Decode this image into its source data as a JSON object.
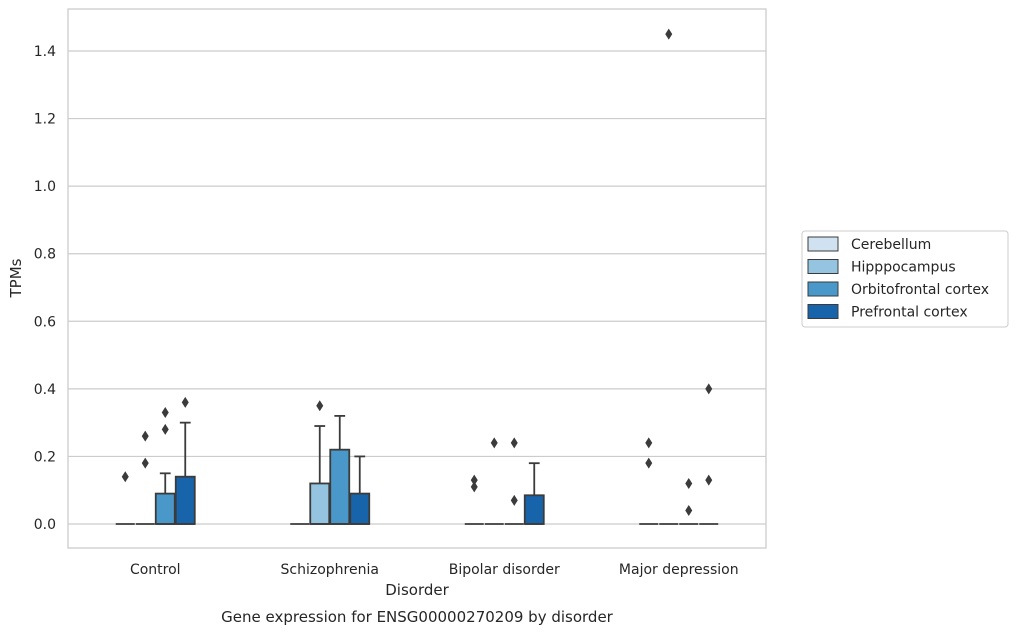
{
  "chart_data": {
    "type": "box",
    "caption": "Gene expression for ENSG00000270209 by disorder",
    "xlabel": "Disorder",
    "ylabel": "TPMs",
    "ylim": [
      -0.07,
      1.53
    ],
    "yticks": [
      "0.0",
      "0.2",
      "0.4",
      "0.6",
      "0.8",
      "1.0",
      "1.2",
      "1.4"
    ],
    "grid": "horizontal",
    "legend_placement": "right",
    "categories": [
      "Control",
      "Schizophrenia",
      "Bipolar disorder",
      "Major depression"
    ],
    "series": [
      {
        "name": "Cerebellum",
        "color": "#d0e1f2",
        "boxes": [
          {
            "q1": 0,
            "median": 0,
            "q3": 0,
            "whisker_low": 0,
            "whisker_high": 0,
            "outliers": [
              0.14
            ]
          },
          {
            "q1": 0,
            "median": 0,
            "q3": 0,
            "whisker_low": 0,
            "whisker_high": 0,
            "outliers": []
          },
          {
            "q1": 0,
            "median": 0,
            "q3": 0,
            "whisker_low": 0,
            "whisker_high": 0,
            "outliers": [
              0.11,
              0.13
            ]
          },
          {
            "q1": 0,
            "median": 0,
            "q3": 0,
            "whisker_low": 0,
            "whisker_high": 0,
            "outliers": [
              0.18,
              0.24
            ]
          }
        ]
      },
      {
        "name": "Hipppocampus",
        "color": "#94c4df",
        "boxes": [
          {
            "q1": 0,
            "median": 0,
            "q3": 0,
            "whisker_low": 0,
            "whisker_high": 0,
            "outliers": [
              0.18,
              0.26
            ]
          },
          {
            "q1": 0,
            "median": 0,
            "q3": 0.12,
            "whisker_low": 0,
            "whisker_high": 0.29,
            "outliers": [
              0.35
            ]
          },
          {
            "q1": 0,
            "median": 0,
            "q3": 0,
            "whisker_low": 0,
            "whisker_high": 0,
            "outliers": [
              0.24
            ]
          },
          {
            "q1": 0,
            "median": 0,
            "q3": 0,
            "whisker_low": 0,
            "whisker_high": 0,
            "outliers": [
              1.45
            ]
          }
        ]
      },
      {
        "name": "Orbitofrontal cortex",
        "color": "#4a98c9",
        "boxes": [
          {
            "q1": 0,
            "median": 0,
            "q3": 0.09,
            "whisker_low": 0,
            "whisker_high": 0.15,
            "outliers": [
              0.28,
              0.33
            ]
          },
          {
            "q1": 0,
            "median": 0,
            "q3": 0.22,
            "whisker_low": 0,
            "whisker_high": 0.32,
            "outliers": []
          },
          {
            "q1": 0,
            "median": 0,
            "q3": 0,
            "whisker_low": 0,
            "whisker_high": 0,
            "outliers": [
              0.07,
              0.24
            ]
          },
          {
            "q1": 0,
            "median": 0,
            "q3": 0,
            "whisker_low": 0,
            "whisker_high": 0,
            "outliers": [
              0.04,
              0.12
            ]
          }
        ]
      },
      {
        "name": "Prefrontal cortex",
        "color": "#1764ab",
        "boxes": [
          {
            "q1": 0,
            "median": 0,
            "q3": 0.14,
            "whisker_low": 0,
            "whisker_high": 0.3,
            "outliers": [
              0.36
            ]
          },
          {
            "q1": 0,
            "median": 0,
            "q3": 0.09,
            "whisker_low": 0,
            "whisker_high": 0.2,
            "outliers": []
          },
          {
            "q1": 0,
            "median": 0,
            "q3": 0.085,
            "whisker_low": 0,
            "whisker_high": 0.18,
            "outliers": []
          },
          {
            "q1": 0,
            "median": 0,
            "q3": 0,
            "whisker_low": 0,
            "whisker_high": 0,
            "outliers": [
              0.13,
              0.4
            ]
          }
        ]
      }
    ]
  }
}
